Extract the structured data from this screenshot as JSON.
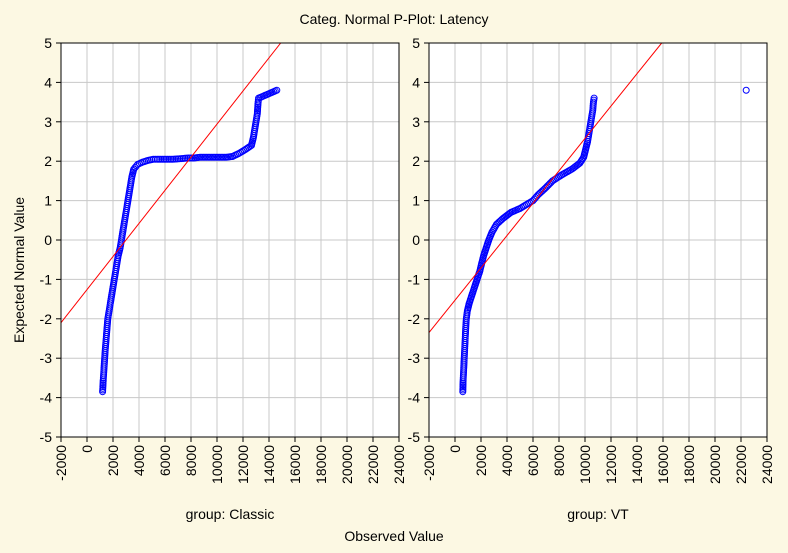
{
  "title": "Categ. Normal P-Plot:  Latency",
  "x_label": "Observed Value",
  "y_label": "Expected Normal Value",
  "colors": {
    "background": "#fcf8e3",
    "plot_background": "#ffffff",
    "grid": "#c8c8c8",
    "markers": "#0000ff",
    "reference_line": "#ff0000"
  },
  "chart_data": [
    {
      "type": "scatter",
      "panel_label": "group: Classic",
      "xlim": [
        -2000,
        24000
      ],
      "ylim": [
        -5,
        5
      ],
      "x_ticks": [
        "-2000",
        "0",
        "2000",
        "4000",
        "6000",
        "8000",
        "10000",
        "12000",
        "14000",
        "16000",
        "18000",
        "20000",
        "22000",
        "24000"
      ],
      "y_ticks": [
        "5",
        "4",
        "3",
        "2",
        "1",
        "0",
        "-1",
        "-2",
        "-3",
        "-4",
        "-5"
      ],
      "grid": true,
      "reference_line": [
        [
          -2000,
          -2.1
        ],
        [
          14900,
          5.0
        ]
      ],
      "points": [
        [
          1200,
          -3.85
        ],
        [
          1250,
          -3.55
        ],
        [
          1280,
          -3.4
        ],
        [
          1320,
          -3.2
        ],
        [
          1360,
          -3.0
        ],
        [
          1400,
          -2.8
        ],
        [
          1450,
          -2.6
        ],
        [
          1500,
          -2.4
        ],
        [
          1550,
          -2.2
        ],
        [
          1600,
          -2.0
        ],
        [
          1700,
          -1.8
        ],
        [
          1800,
          -1.6
        ],
        [
          1900,
          -1.4
        ],
        [
          2000,
          -1.2
        ],
        [
          2100,
          -1.0
        ],
        [
          2200,
          -0.8
        ],
        [
          2300,
          -0.6
        ],
        [
          2400,
          -0.4
        ],
        [
          2550,
          -0.2
        ],
        [
          2650,
          0.0
        ],
        [
          2750,
          0.2
        ],
        [
          2850,
          0.4
        ],
        [
          2950,
          0.6
        ],
        [
          3050,
          0.8
        ],
        [
          3150,
          1.0
        ],
        [
          3250,
          1.2
        ],
        [
          3350,
          1.4
        ],
        [
          3450,
          1.6
        ],
        [
          3600,
          1.8
        ],
        [
          3900,
          1.92
        ],
        [
          4300,
          1.98
        ],
        [
          4700,
          2.02
        ],
        [
          5100,
          2.05
        ],
        [
          5400,
          2.05
        ],
        [
          6600,
          2.05
        ],
        [
          7000,
          2.06
        ],
        [
          7400,
          2.07
        ],
        [
          7800,
          2.08
        ],
        [
          8200,
          2.08
        ],
        [
          8700,
          2.1
        ],
        [
          9200,
          2.1
        ],
        [
          9700,
          2.1
        ],
        [
          10200,
          2.1
        ],
        [
          10700,
          2.1
        ],
        [
          11200,
          2.12
        ],
        [
          11700,
          2.2
        ],
        [
          12200,
          2.3
        ],
        [
          12650,
          2.4
        ],
        [
          12800,
          2.6
        ],
        [
          12900,
          2.8
        ],
        [
          13000,
          3.0
        ],
        [
          13100,
          3.2
        ],
        [
          13150,
          3.45
        ],
        [
          13200,
          3.6
        ],
        [
          14600,
          3.8
        ]
      ]
    },
    {
      "type": "scatter",
      "panel_label": "group: VT",
      "xlim": [
        -2000,
        24000
      ],
      "ylim": [
        -5,
        5
      ],
      "x_ticks": [
        "-2000",
        "0",
        "2000",
        "4000",
        "6000",
        "8000",
        "10000",
        "12000",
        "14000",
        "16000",
        "18000",
        "20000",
        "22000",
        "24000"
      ],
      "y_ticks": [
        "5",
        "4",
        "3",
        "2",
        "1",
        "0",
        "-1",
        "-2",
        "-3",
        "-4",
        "-5"
      ],
      "grid": true,
      "reference_line": [
        [
          -2000,
          -2.35
        ],
        [
          15900,
          5.0
        ]
      ],
      "points": [
        [
          600,
          -3.85
        ],
        [
          620,
          -3.6
        ],
        [
          650,
          -3.4
        ],
        [
          680,
          -3.2
        ],
        [
          710,
          -3.0
        ],
        [
          740,
          -2.8
        ],
        [
          770,
          -2.6
        ],
        [
          800,
          -2.4
        ],
        [
          830,
          -2.2
        ],
        [
          870,
          -2.0
        ],
        [
          950,
          -1.8
        ],
        [
          1100,
          -1.6
        ],
        [
          1300,
          -1.4
        ],
        [
          1500,
          -1.2
        ],
        [
          1700,
          -1.0
        ],
        [
          1900,
          -0.8
        ],
        [
          2050,
          -0.6
        ],
        [
          2200,
          -0.4
        ],
        [
          2400,
          -0.2
        ],
        [
          2600,
          0.0
        ],
        [
          2850,
          0.2
        ],
        [
          3200,
          0.4
        ],
        [
          3700,
          0.55
        ],
        [
          4300,
          0.7
        ],
        [
          5000,
          0.8
        ],
        [
          5500,
          0.9
        ],
        [
          6000,
          1.0
        ],
        [
          6400,
          1.15
        ],
        [
          6900,
          1.3
        ],
        [
          7500,
          1.5
        ],
        [
          8200,
          1.65
        ],
        [
          9000,
          1.8
        ],
        [
          9600,
          1.95
        ],
        [
          9900,
          2.1
        ],
        [
          10050,
          2.3
        ],
        [
          10200,
          2.5
        ],
        [
          10300,
          2.7
        ],
        [
          10400,
          2.9
        ],
        [
          10500,
          3.1
        ],
        [
          10600,
          3.3
        ],
        [
          10650,
          3.5
        ],
        [
          10700,
          3.6
        ],
        [
          22400,
          3.8
        ]
      ]
    }
  ]
}
